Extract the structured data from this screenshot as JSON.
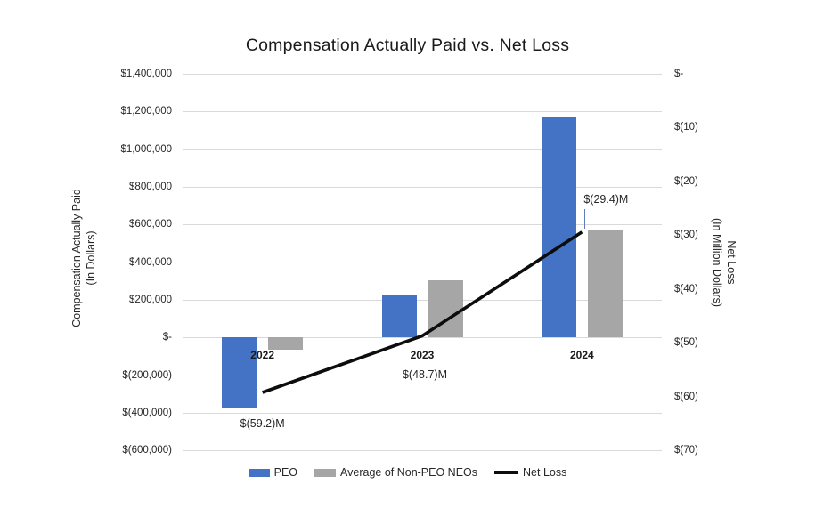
{
  "title": "Compensation Actually Paid vs. Net Loss",
  "left_axis": {
    "title_line1": "Compensation Actually Paid",
    "title_line2": "(In Dollars)",
    "tick_labels": [
      "$1,400,000",
      "$1,200,000",
      "$1,000,000",
      "$800,000",
      "$600,000",
      "$400,000",
      "$200,000",
      "$-",
      "$(200,000)",
      "$(400,000)",
      "$(600,000)"
    ]
  },
  "right_axis": {
    "title_line1": "Net Loss",
    "title_line2": "(In Million Dollars)",
    "tick_labels": [
      "$-",
      "$(10)",
      "$(20)",
      "$(30)",
      "$(40)",
      "$(50)",
      "$(60)",
      "$(70)"
    ]
  },
  "legend": {
    "items": [
      {
        "label": "PEO",
        "color": "#4472C4",
        "marker": "bar"
      },
      {
        "label": "Average of Non-PEO NEOs",
        "color": "#A6A6A6",
        "marker": "bar"
      },
      {
        "label": "Net Loss",
        "color": "#0D0D0D",
        "marker": "line"
      }
    ]
  },
  "colors": {
    "peo_bar": "#4472C4",
    "non_peo_bar": "#A6A6A6",
    "net_loss_line": "#0D0D0D",
    "gridline": "#D9D9D9",
    "leader_line": "#5E7DBF"
  },
  "chart_data": {
    "type": "bar",
    "subtype": "clustered-bar-with-line-combo",
    "title": "Compensation Actually Paid vs. Net Loss",
    "categories": [
      "2022",
      "2023",
      "2024"
    ],
    "series": [
      {
        "name": "PEO",
        "type": "bar",
        "axis": "left",
        "color": "#4472C4",
        "values": [
          -375000,
          225000,
          1170000
        ]
      },
      {
        "name": "Average of Non-PEO NEOs",
        "type": "bar",
        "axis": "left",
        "color": "#A6A6A6",
        "values": [
          -65000,
          305000,
          575000
        ]
      },
      {
        "name": "Net Loss",
        "type": "line",
        "axis": "right",
        "color": "#0D0D0D",
        "values": [
          -59.2,
          -48.7,
          -29.4
        ],
        "point_labels": [
          "$(59.2)M",
          "$(48.7)M",
          "$(29.4)M"
        ]
      }
    ],
    "left_axis": {
      "label": "Compensation Actually Paid (In Dollars)",
      "range": [
        -600000,
        1400000
      ],
      "tick_step": 200000
    },
    "right_axis": {
      "label": "Net Loss (In Million Dollars)",
      "range": [
        -70,
        0
      ],
      "tick_step": 10
    },
    "grid": true,
    "legend_position": "bottom"
  }
}
